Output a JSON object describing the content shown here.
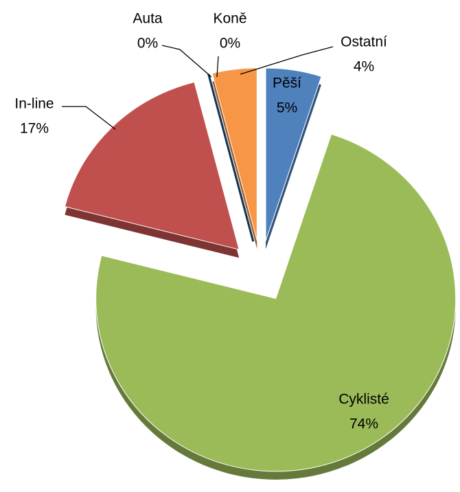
{
  "chart_data": {
    "type": "pie",
    "categories": [
      "Pěší",
      "Cyklisté",
      "In-line",
      "Auta",
      "Koně",
      "Ostatní"
    ],
    "values": [
      5,
      74,
      17,
      0,
      0,
      4
    ],
    "value_labels": [
      "5%",
      "74%",
      "17%",
      "0%",
      "0%",
      "4%"
    ],
    "colors": [
      "#4f81bd",
      "#9bbb59",
      "#c0504d",
      "#4bacc6",
      "#1f497d",
      "#f79646"
    ]
  }
}
